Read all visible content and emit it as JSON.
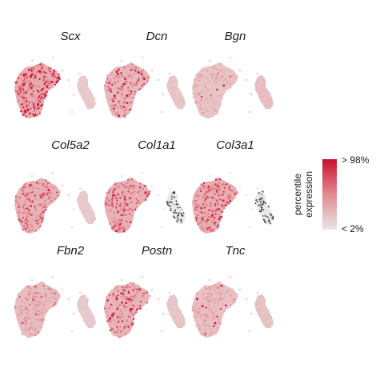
{
  "chart_data": {
    "type": "scatter",
    "description_note": "",
    "panels": [
      {
        "gene": "Scx",
        "left_intensity": 0.82,
        "right_intensity": 0.22,
        "right_dark": 0.0,
        "extra_hot": 0.55
      },
      {
        "gene": "Dcn",
        "left_intensity": 0.62,
        "right_intensity": 0.25,
        "right_dark": 0.0,
        "extra_hot": 0.35
      },
      {
        "gene": "Bgn",
        "left_intensity": 0.45,
        "right_intensity": 0.3,
        "right_dark": 0.0,
        "extra_hot": 0.05
      },
      {
        "gene": "Col5a2",
        "left_intensity": 0.7,
        "right_intensity": 0.22,
        "right_dark": 0.0,
        "extra_hot": 0.15
      },
      {
        "gene": "Col1a1",
        "left_intensity": 0.72,
        "right_intensity": 0.05,
        "right_dark": 0.45,
        "extra_hot": 0.15
      },
      {
        "gene": "Col3a1",
        "left_intensity": 0.75,
        "right_intensity": 0.05,
        "right_dark": 0.55,
        "extra_hot": 0.2
      },
      {
        "gene": "Fbn2",
        "left_intensity": 0.55,
        "right_intensity": 0.22,
        "right_dark": 0.0,
        "extra_hot": 0.05
      },
      {
        "gene": "Postn",
        "left_intensity": 0.65,
        "right_intensity": 0.25,
        "right_dark": 0.0,
        "extra_hot": 0.3
      },
      {
        "gene": "Tnc",
        "left_intensity": 0.5,
        "right_intensity": 0.28,
        "right_dark": 0.0,
        "extra_hot": 0.1
      }
    ],
    "legend": {
      "title_line1": "percentile",
      "title_line2": "expression",
      "high_label": "> 98%",
      "low_label": "< 2%",
      "high_color": "#c8102e",
      "low_color": "#e6e6e6"
    },
    "colors": {
      "low": "#e6e6e6",
      "mid": "#e8a3a8",
      "high": "#c8102e",
      "dark_point": "#4a4a4a"
    },
    "grid": false
  }
}
